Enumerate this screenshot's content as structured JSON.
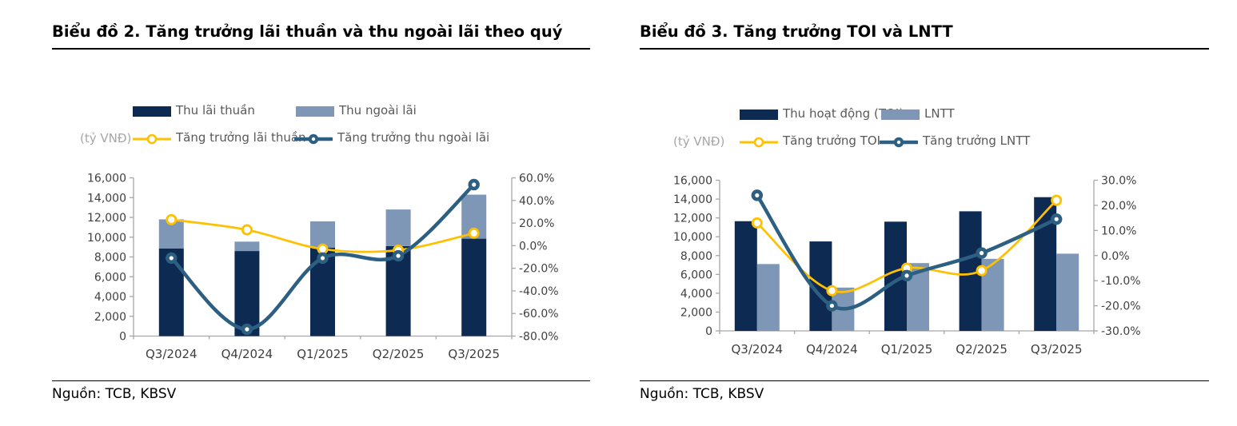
{
  "page": {
    "background": "#ffffff"
  },
  "source_note": "Nguồn: TCB, KBSV",
  "colors": {
    "dark_navy": "#0d2a52",
    "light_blue": "#7f97b6",
    "gold": "#ffc000",
    "steel_teal": "#2d5f82",
    "axis_line": "#a6a6a6",
    "tick_label": "#404040",
    "legend_text": "#595959",
    "unit_text": "#a6a6a6"
  },
  "chart_data": [
    {
      "type": "bar-line-combo",
      "title": "Biểu đồ 2. Tăng trưởng lãi thuần và thu ngoài lãi theo quý",
      "unit_label": "(tỷ VNĐ)",
      "source": "Nguồn: TCB, KBSV",
      "bar_mode": "stacked",
      "grid": false,
      "legend_position": "top",
      "categories": [
        "Q3/2024",
        "Q4/2024",
        "Q1/2025",
        "Q2/2025",
        "Q3/2025"
      ],
      "bar_series": [
        {
          "name": "Thu lãi thuần",
          "color": "#0d2a52",
          "axis": "left",
          "values": [
            8850,
            8600,
            8950,
            9100,
            9850
          ]
        },
        {
          "name": "Thu ngoài lãi",
          "color": "#7f97b6",
          "axis": "left",
          "values": [
            2950,
            950,
            2650,
            3700,
            4450
          ]
        }
      ],
      "line_series": [
        {
          "name": "Tăng trưởng lãi thuần",
          "color": "#ffc000",
          "marker": "open",
          "axis": "right",
          "values": [
            23,
            14,
            -3,
            -4,
            11
          ]
        },
        {
          "name": "Tăng trưởng thu ngoài lãi",
          "color": "#2d5f82",
          "marker": "donut",
          "axis": "right",
          "values": [
            -11,
            -74,
            -11,
            -9,
            54
          ]
        }
      ],
      "left_axis": {
        "min": 0,
        "max": 16000,
        "step": 2000,
        "format": "number"
      },
      "right_axis": {
        "min": -80,
        "max": 60,
        "step": 20,
        "format": "percent"
      }
    },
    {
      "type": "bar-line-combo",
      "title": "Biểu đồ 3. Tăng trưởng TOI và LNTT",
      "unit_label": "(tỷ VNĐ)",
      "source": "Nguồn: TCB, KBSV",
      "bar_mode": "grouped",
      "grid": false,
      "legend_position": "top",
      "categories": [
        "Q3/2024",
        "Q4/2024",
        "Q1/2025",
        "Q2/2025",
        "Q3/2025"
      ],
      "bar_series": [
        {
          "name": "Thu hoạt động (TOI)",
          "color": "#0d2a52",
          "axis": "left",
          "values": [
            11650,
            9500,
            11600,
            12700,
            14200
          ]
        },
        {
          "name": "LNTT",
          "color": "#7f97b6",
          "axis": "left",
          "values": [
            7100,
            4600,
            7200,
            7650,
            8200
          ]
        }
      ],
      "line_series": [
        {
          "name": "Tăng trưởng TOI",
          "color": "#ffc000",
          "marker": "open",
          "axis": "right",
          "values": [
            13,
            -14,
            -5,
            -6,
            22
          ]
        },
        {
          "name": "Tăng trưởng LNTT",
          "color": "#2d5f82",
          "marker": "donut",
          "axis": "right",
          "values": [
            24,
            -20,
            -8,
            1,
            14.5
          ]
        }
      ],
      "left_axis": {
        "min": 0,
        "max": 16000,
        "step": 2000,
        "format": "number"
      },
      "right_axis": {
        "min": -30,
        "max": 30,
        "step": 10,
        "format": "percent"
      }
    }
  ]
}
